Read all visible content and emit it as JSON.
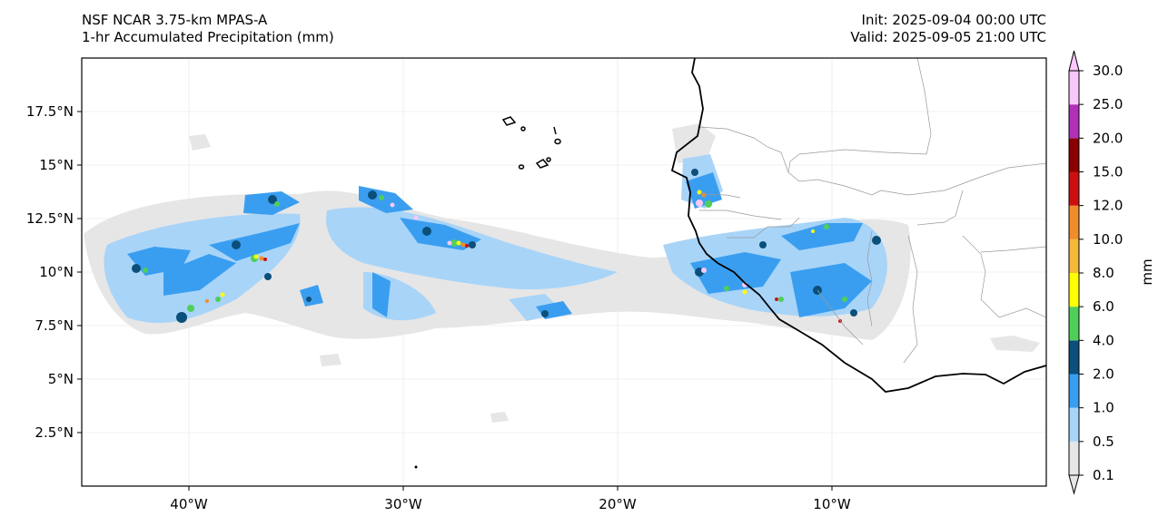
{
  "header": {
    "model": "NSF NCAR 3.75-km MPAS-A",
    "field": "1-hr Accumulated Precipitation (mm)",
    "init": "Init: 2025-09-04 00:00 UTC",
    "valid": "Valid: 2025-09-05 21:00 UTC"
  },
  "map": {
    "lon_range": [
      -45,
      0
    ],
    "lat_range": [
      0,
      20
    ],
    "lat_ticks": [
      {
        "value": 2.5,
        "label": "2.5°N"
      },
      {
        "value": 5,
        "label": "5°N"
      },
      {
        "value": 7.5,
        "label": "7.5°N"
      },
      {
        "value": 10,
        "label": "10°N"
      },
      {
        "value": 12.5,
        "label": "12.5°N"
      },
      {
        "value": 15,
        "label": "15°N"
      },
      {
        "value": 17.5,
        "label": "17.5°N"
      }
    ],
    "lon_ticks": [
      {
        "value": -40,
        "label": "40°W"
      },
      {
        "value": -30,
        "label": "30°W"
      },
      {
        "value": -20,
        "label": "20°W"
      },
      {
        "value": -10,
        "label": "10°W"
      }
    ],
    "gridlines": true
  },
  "colorbar": {
    "unit_label": "mm",
    "levels": [
      {
        "label": "0.1",
        "color": "#e6e6e6"
      },
      {
        "label": "0.5",
        "color": "#a8d4f8"
      },
      {
        "label": "1.0",
        "color": "#3a9ef0"
      },
      {
        "label": "2.0",
        "color": "#0b4f7a"
      },
      {
        "label": "4.0",
        "color": "#4fcf5a"
      },
      {
        "label": "6.0",
        "color": "#ffff00"
      },
      {
        "label": "8.0",
        "color": "#f4b83a"
      },
      {
        "label": "10.0",
        "color": "#ef8c2c"
      },
      {
        "label": "12.0",
        "color": "#cc1010"
      },
      {
        "label": "15.0",
        "color": "#8a0000"
      },
      {
        "label": "20.0",
        "color": "#b030b8"
      },
      {
        "label": "25.0",
        "color": "#f8c8f8"
      },
      {
        "label": "30.0",
        "color": ""
      }
    ],
    "extend": "both"
  }
}
